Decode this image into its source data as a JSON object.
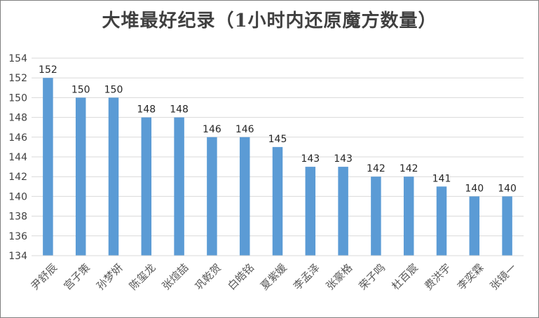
{
  "chart_data": {
    "type": "bar",
    "title": "大堆最好纪录（1小时内还原魔方数量）",
    "categories": [
      "尹舒辰",
      "宫子策",
      "孙梦妍",
      "陈玺龙",
      "张煊喆",
      "巩乾贺",
      "白皓铭",
      "夏紫媛",
      "李孟泽",
      "张豪格",
      "荣子鸣",
      "杜百宸",
      "费洪宇",
      "李奕霖",
      "张镜一"
    ],
    "values": [
      152,
      150,
      150,
      148,
      148,
      146,
      146,
      145,
      143,
      143,
      142,
      142,
      141,
      140,
      140
    ],
    "data_labels": [
      "152",
      "150",
      "150",
      "148",
      "148",
      "146",
      "146",
      "145",
      "143",
      "143",
      "142",
      "142",
      "141",
      "140",
      "140"
    ],
    "ylim": [
      134,
      154
    ],
    "yticks": [
      "134",
      "136",
      "138",
      "140",
      "142",
      "144",
      "146",
      "148",
      "150",
      "152",
      "154"
    ],
    "bar_color": "#5b9bd5",
    "grid": true,
    "legend": "none",
    "xlabel": "",
    "ylabel": ""
  }
}
